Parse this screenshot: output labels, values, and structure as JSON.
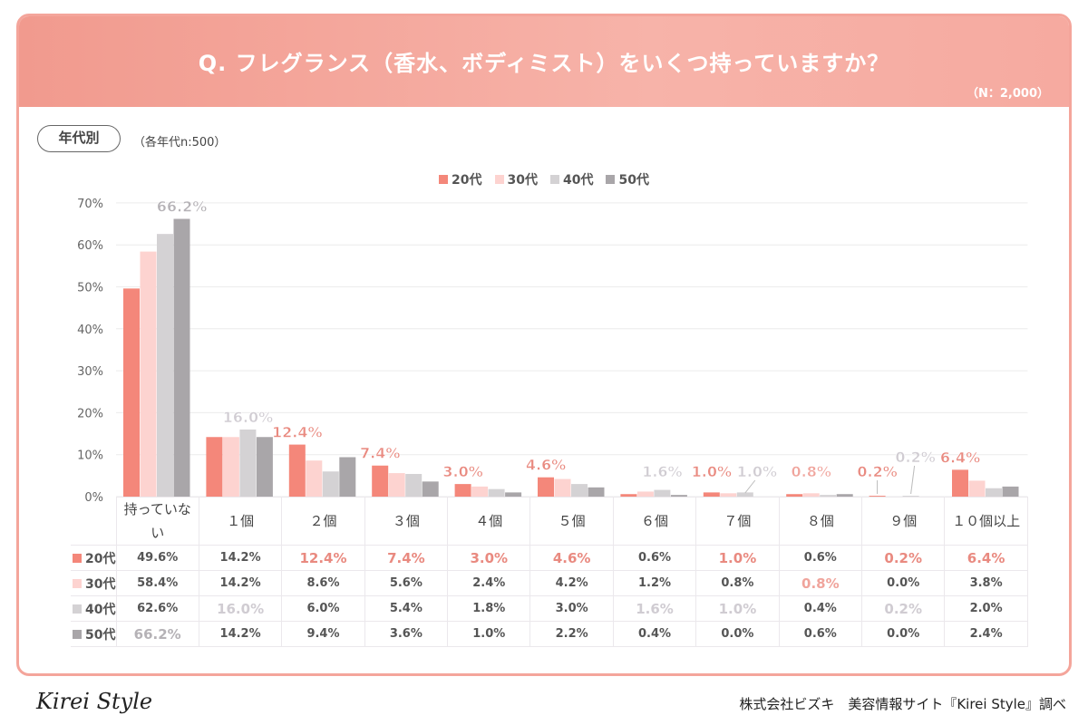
{
  "header": {
    "title": "Q. フレグランス（香水、ボディミスト）をいくつ持っていますか？",
    "sample": "（N：2,000）"
  },
  "segment": {
    "label": "年代別",
    "note": "（各年代n:500）"
  },
  "footer": {
    "logo": "Kirei Style",
    "source": "株式会社ビズキ　美容情報サイト『Kirei Style』調べ"
  },
  "chart_data": {
    "type": "bar",
    "categories": [
      "持っていない",
      "１個",
      "２個",
      "３個",
      "４個",
      "５個",
      "６個",
      "７個",
      "８個",
      "９個",
      "１０個以上"
    ],
    "series": [
      {
        "name": "20代",
        "color": "#f4877a",
        "values": [
          49.6,
          14.2,
          12.4,
          7.4,
          3.0,
          4.6,
          0.6,
          1.0,
          0.6,
          0.2,
          6.4
        ]
      },
      {
        "name": "30代",
        "color": "#fdd3d0",
        "values": [
          58.4,
          14.2,
          8.6,
          5.6,
          2.4,
          4.2,
          1.2,
          0.8,
          0.8,
          0.0,
          3.8
        ]
      },
      {
        "name": "40代",
        "color": "#d4d2d4",
        "values": [
          62.6,
          16.0,
          6.0,
          5.4,
          1.8,
          3.0,
          1.6,
          1.0,
          0.4,
          0.2,
          2.0
        ]
      },
      {
        "name": "50代",
        "color": "#a9a6a9",
        "values": [
          66.2,
          14.2,
          9.4,
          3.6,
          1.0,
          2.2,
          0.4,
          0.0,
          0.6,
          0.0,
          2.4
        ]
      }
    ],
    "highlights": [
      [
        3,
        0
      ],
      [
        2,
        1
      ],
      [
        0,
        2
      ],
      [
        0,
        3
      ],
      [
        0,
        4
      ],
      [
        0,
        5
      ],
      [
        2,
        6
      ],
      [
        0,
        7
      ],
      [
        2,
        7
      ],
      [
        1,
        8
      ],
      [
        0,
        9
      ],
      [
        2,
        9
      ],
      [
        0,
        10
      ]
    ],
    "yticks": [
      "0%",
      "10%",
      "20%",
      "30%",
      "40%",
      "50%",
      "60%",
      "70%"
    ],
    "ylim": [
      0,
      70
    ],
    "grid": true,
    "legend": "top",
    "unit": "%"
  }
}
